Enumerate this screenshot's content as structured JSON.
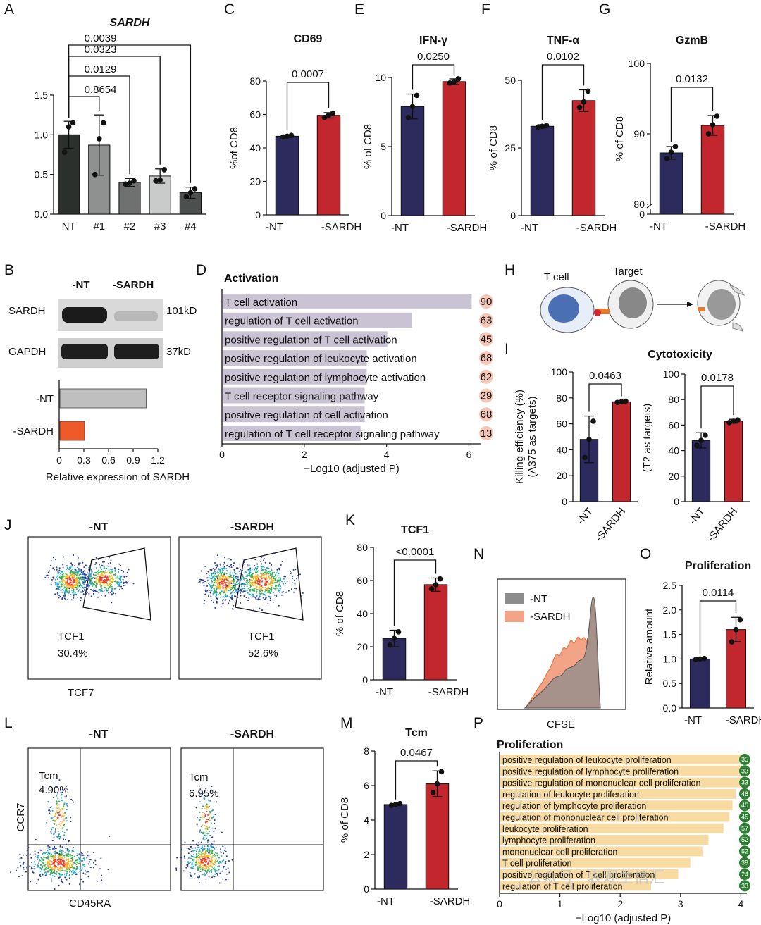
{
  "panels": {
    "A": {
      "letter": "A",
      "chart_data": {
        "type": "bar",
        "title": "SARDH",
        "categories": [
          "NT",
          "#1",
          "#2",
          "#3",
          "#4"
        ],
        "values": [
          1.0,
          0.87,
          0.4,
          0.48,
          0.27
        ],
        "errors": [
          0.17,
          0.38,
          0.05,
          0.09,
          0.07
        ],
        "points": [
          [
            0.78,
            1.1,
            1.15
          ],
          [
            0.5,
            0.95,
            1.15
          ],
          [
            0.38,
            0.39,
            0.42
          ],
          [
            0.42,
            0.43,
            0.56
          ],
          [
            0.22,
            0.27,
            0.32
          ]
        ],
        "colors": [
          "#2b302c",
          "#8e9190",
          "#6e7170",
          "#c8cbca",
          "#4b4f4d"
        ],
        "ylim": [
          0,
          1.5
        ],
        "yticks": [
          "0.0",
          "0.5",
          "1.0",
          "1.5"
        ],
        "ylabel": "",
        "comparisons": [
          {
            "from": "NT",
            "to": "#1",
            "p": "0.8654"
          },
          {
            "from": "NT",
            "to": "#2",
            "p": "0.0129"
          },
          {
            "from": "NT",
            "to": "#3",
            "p": "0.0323"
          },
          {
            "from": "NT",
            "to": "#4",
            "p": "0.0039"
          }
        ]
      }
    },
    "C": {
      "letter": "C",
      "chart_data": {
        "type": "bar",
        "title": "CD69",
        "categories": [
          "-NT",
          "-SARDH"
        ],
        "values": [
          47,
          59.5
        ],
        "errors": [
          0.8,
          1.6
        ],
        "points": [
          [
            46.5,
            47.0,
            47.5
          ],
          [
            58.2,
            59.6,
            60.8
          ]
        ],
        "colors": [
          "#2d2a5e",
          "#c1272d"
        ],
        "ylim": [
          0,
          80
        ],
        "yticks": [
          "0",
          "20",
          "40",
          "60",
          "80"
        ],
        "ylabel": "%of CD8",
        "pvalue": "0.0007"
      }
    },
    "E": {
      "letter": "E",
      "chart_data": {
        "type": "bar",
        "title": "IFN-γ",
        "categories": [
          "-NT",
          "-SARDH"
        ],
        "values": [
          7.9,
          9.7
        ],
        "errors": [
          0.9,
          0.2
        ],
        "points": [
          [
            7.1,
            7.9,
            8.7
          ],
          [
            9.6,
            9.7,
            9.9
          ]
        ],
        "colors": [
          "#2d2a5e",
          "#c1272d"
        ],
        "ylim": [
          0,
          10
        ],
        "yticks": [
          "0",
          "5",
          "10"
        ],
        "ylabel": "% of CD8",
        "pvalue": "0.0250"
      }
    },
    "F": {
      "letter": "F",
      "chart_data": {
        "type": "bar",
        "title": "TNF-α",
        "categories": [
          "-NT",
          "-SARDH"
        ],
        "values": [
          33,
          42.5
        ],
        "errors": [
          0.6,
          4
        ],
        "points": [
          [
            32.7,
            33.0,
            33.3
          ],
          [
            40.0,
            42.0,
            46.0
          ]
        ],
        "colors": [
          "#2d2a5e",
          "#c1272d"
        ],
        "ylim": [
          0,
          50
        ],
        "yticks": [
          "0",
          "25",
          "50"
        ],
        "ylabel": "% of CD8",
        "pvalue": "0.0102"
      }
    },
    "G": {
      "letter": "G",
      "chart_data": {
        "type": "bar",
        "title": "GzmB",
        "categories": [
          "-NT",
          "-SARDH"
        ],
        "values": [
          87.3,
          91.2
        ],
        "errors": [
          0.9,
          1.4
        ],
        "points": [
          [
            86.5,
            87.4,
            88.2
          ],
          [
            90.0,
            91.3,
            92.5
          ]
        ],
        "colors": [
          "#2d2a5e",
          "#c1272d"
        ],
        "ylim": [
          0,
          100
        ],
        "axis_break": [
          0,
          80
        ],
        "yticks": [
          "0",
          "80",
          "90",
          "100"
        ],
        "ylabel": "% of CD8",
        "pvalue": "0.0132"
      }
    },
    "B": {
      "letter": "B",
      "blot": {
        "lanes": [
          "-NT",
          "-SARDH"
        ],
        "rows": [
          {
            "protein": "SARDH",
            "size": "101kD"
          },
          {
            "protein": "GAPDH",
            "size": "37kD"
          }
        ]
      },
      "chart_data": {
        "type": "bar",
        "orientation": "horizontal",
        "categories": [
          "-NT",
          "-SARDH"
        ],
        "values": [
          1.05,
          0.3
        ],
        "colors": [
          "#bfbfbf",
          "#f05a28"
        ],
        "xlim": [
          0,
          1.2
        ],
        "xticks": [
          "0",
          "0.3",
          "0.6",
          "0.9",
          "1.2"
        ],
        "xlabel": "Relative expression of SARDH"
      }
    },
    "D": {
      "letter": "D",
      "chart_data": {
        "type": "bar",
        "orientation": "horizontal",
        "title": "Activation",
        "categories": [
          "T cell activation",
          "regulation of T cell activation",
          "positive regulation of T cell activation",
          "positive regulation of leukocyte activation",
          "positive regulation of lymphocyte activation",
          "T cell receptor signaling pathway",
          "positive regulation of cell activation",
          "regulation of T cell receptor signaling pathway"
        ],
        "values": [
          6.05,
          4.6,
          4.0,
          3.5,
          3.5,
          3.45,
          3.45,
          3.35
        ],
        "counts": [
          "90",
          "63",
          "45",
          "68",
          "62",
          "29",
          "68",
          "13"
        ],
        "xlim": [
          0,
          6.3
        ],
        "xticks": [
          "0",
          "2",
          "4",
          "6"
        ],
        "xlabel": "−Log10 (adjusted P)",
        "bar_color": "#c9c3d3",
        "badge_color": "#f6c6b6"
      }
    },
    "H": {
      "letter": "H",
      "t_cell": "T cell",
      "target": "Target"
    },
    "I": {
      "letter": "I",
      "title": "Cytotoxicity",
      "chart_data": [
        {
          "type": "bar",
          "categories": [
            "-NT",
            "-SARDH"
          ],
          "values": [
            48,
            77
          ],
          "errors": [
            18,
            1
          ],
          "points": [
            [
              34,
              48,
              62
            ],
            [
              76.5,
              77,
              77.5
            ]
          ],
          "colors": [
            "#2d2a5e",
            "#c1272d"
          ],
          "ylim": [
            0,
            100
          ],
          "yticks": [
            "0",
            "20",
            "40",
            "60",
            "80",
            "100"
          ],
          "ylabel": "Killing efficiency (%)",
          "ylabel2": "(A375 as targets)",
          "pvalue": "0.0463"
        },
        {
          "type": "bar",
          "categories": [
            "-NT",
            "-SARDH"
          ],
          "values": [
            48,
            63
          ],
          "errors": [
            6,
            1.5
          ],
          "points": [
            [
              44,
              48,
              52
            ],
            [
              62,
              63,
              64
            ]
          ],
          "colors": [
            "#2d2a5e",
            "#c1272d"
          ],
          "ylim": [
            0,
            100
          ],
          "yticks": [
            "0",
            "20",
            "40",
            "60",
            "80",
            "100"
          ],
          "ylabel": "(T2 as targets)",
          "pvalue": "0.0178"
        }
      ]
    },
    "J": {
      "letter": "J",
      "plots": [
        {
          "title": "-NT",
          "gate": "TCF1",
          "percent": "30.4%"
        },
        {
          "title": "-SARDH",
          "gate": "TCF1",
          "percent": "52.6%"
        }
      ],
      "xlabel": "TCF7"
    },
    "K": {
      "letter": "K",
      "chart_data": {
        "type": "bar",
        "title": "TCF1",
        "categories": [
          "-NT",
          "-SARDH"
        ],
        "values": [
          25,
          57.5
        ],
        "errors": [
          5,
          4
        ],
        "points": [
          [
            21,
            25,
            29
          ],
          [
            55,
            57.5,
            61
          ]
        ],
        "colors": [
          "#2d2a5e",
          "#c1272d"
        ],
        "ylim": [
          0,
          80
        ],
        "yticks": [
          "0",
          "20",
          "40",
          "60",
          "80"
        ],
        "ylabel": "% of CD8",
        "pvalue": "<0.0001"
      }
    },
    "N": {
      "letter": "N",
      "legend": [
        "-NT",
        "-SARDH"
      ],
      "xlabel": "CFSE",
      "colors": [
        "#8c8c8c",
        "#f0967a"
      ]
    },
    "O": {
      "letter": "O",
      "chart_data": {
        "type": "bar",
        "title": "Proliferation",
        "categories": [
          "-NT",
          "-SARDH"
        ],
        "values": [
          1.0,
          1.6
        ],
        "errors": [
          0.01,
          0.25
        ],
        "points": [
          [
            0.99,
            1.0,
            1.01
          ],
          [
            1.35,
            1.6,
            1.8
          ]
        ],
        "colors": [
          "#2d2a5e",
          "#c1272d"
        ],
        "ylim": [
          0,
          2.5
        ],
        "yticks": [
          "0.0",
          "0.5",
          "1.0",
          "1.5",
          "2.0",
          "2.5"
        ],
        "ylabel": "Relative amount",
        "pvalue": "0.0114"
      }
    },
    "L": {
      "letter": "L",
      "plots": [
        {
          "title": "-NT",
          "gate": "Tcm",
          "percent": "4.90%"
        },
        {
          "title": "-SARDH",
          "gate": "Tcm",
          "percent": "6.95%"
        }
      ],
      "xlabel": "CD45RA",
      "ylabel": "CCR7"
    },
    "M": {
      "letter": "M",
      "chart_data": {
        "type": "bar",
        "title": "Tcm",
        "categories": [
          "-NT",
          "-SARDH"
        ],
        "values": [
          4.9,
          6.1
        ],
        "errors": [
          0.05,
          0.75
        ],
        "points": [
          [
            4.85,
            4.9,
            4.95
          ],
          [
            5.6,
            6.1,
            6.8
          ]
        ],
        "colors": [
          "#2d2a5e",
          "#c1272d"
        ],
        "ylim": [
          0,
          8
        ],
        "yticks": [
          "0",
          "2",
          "4",
          "6",
          "8"
        ],
        "ylabel": "% of CD8",
        "pvalue": "0.0467"
      }
    },
    "P": {
      "letter": "P",
      "chart_data": {
        "type": "bar",
        "orientation": "horizontal",
        "title": "Proliferation",
        "categories": [
          "positive regulation of leukocyte proliferation",
          "positive regulation of lymphocyte proliferation",
          "positive regulation of mononuclear cell proliferation",
          "regulation of leukocyte proliferation",
          "regulation of lymphocyte proliferation",
          "regulation of mononuclear cell proliferation",
          "leukocyte proliferation",
          "lymphocyte proliferation",
          "mononuclear cell proliferation",
          "T cell proliferation",
          "positive regulation of T cell proliferation",
          "regulation of T cell proliferation"
        ],
        "values": [
          4.0,
          4.0,
          4.0,
          3.9,
          3.85,
          3.8,
          3.7,
          3.45,
          3.35,
          3.15,
          2.95,
          2.5
        ],
        "counts": [
          "35",
          "33",
          "33",
          "48",
          "45",
          "45",
          "57",
          "52",
          "52",
          "39",
          "24",
          "33"
        ],
        "xlim": [
          0,
          4.1
        ],
        "xticks": [
          "0",
          "1",
          "2",
          "3",
          "4"
        ],
        "xlabel": "−Log10 (adjusted P)",
        "bar_color": "#f8dba3",
        "badge_color": "#2e7d32"
      }
    }
  },
  "watermark": "公众号 · 表观生信汇"
}
